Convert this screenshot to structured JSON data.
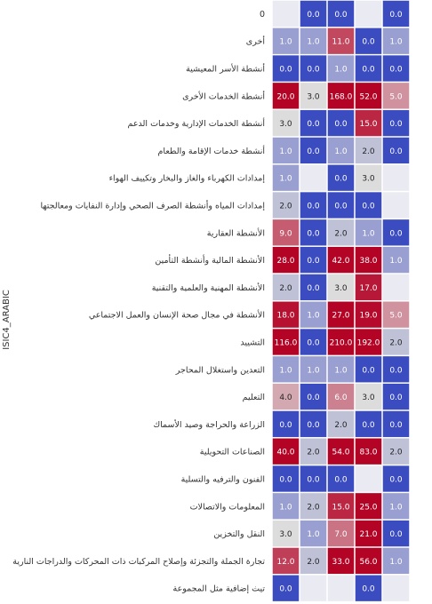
{
  "chart_data": {
    "type": "heatmap",
    "ylabel": "ISIC4_ARABIC",
    "color_scale": {
      "empty": "#eaeaf2",
      "low": "#3b4cc0",
      "mid": "#dddcdc",
      "high": "#b40426",
      "cap": 20
    },
    "rows": [
      {
        "label": "0",
        "values": [
          null,
          0.0,
          0.0,
          null,
          0.0
        ]
      },
      {
        "label": "أخرى",
        "values": [
          1.0,
          1.0,
          11.0,
          0.0,
          1.0
        ]
      },
      {
        "label": "أنشطة الأسر المعيشية",
        "values": [
          0.0,
          0.0,
          1.0,
          0.0,
          0.0
        ]
      },
      {
        "label": "أنشطة الخدمات الأخرى",
        "values": [
          20.0,
          3.0,
          168.0,
          52.0,
          5.0
        ]
      },
      {
        "label": "أنشطة الخدمات الإدارية وخدمات الدعم",
        "values": [
          3.0,
          0.0,
          0.0,
          15.0,
          0.0
        ]
      },
      {
        "label": "أنشطة خدمات الإقامة والطعام",
        "values": [
          1.0,
          0.0,
          1.0,
          2.0,
          0.0
        ]
      },
      {
        "label": "إمدادات الكهرباء والغاز والبخار وتكييف الهواء",
        "values": [
          1.0,
          null,
          0.0,
          3.0,
          null
        ]
      },
      {
        "label": "إمدادات المياه وأنشطة الصرف الصحي وإدارة النفايات ومعالجتها",
        "values": [
          2.0,
          0.0,
          0.0,
          0.0,
          null
        ]
      },
      {
        "label": "الأنشطة العقارية",
        "values": [
          9.0,
          0.0,
          2.0,
          1.0,
          0.0
        ]
      },
      {
        "label": "الأنشطة المالية وأنشطة التأمين",
        "values": [
          28.0,
          0.0,
          42.0,
          38.0,
          1.0
        ]
      },
      {
        "label": "الأنشطة المهنية والعلمية والتقنية",
        "values": [
          2.0,
          0.0,
          3.0,
          17.0,
          null
        ]
      },
      {
        "label": "الأنشطة في مجال صحة الإنسان والعمل الاجتماعي",
        "values": [
          18.0,
          1.0,
          27.0,
          19.0,
          5.0
        ]
      },
      {
        "label": "التشييد",
        "values": [
          116.0,
          0.0,
          210.0,
          192.0,
          2.0
        ]
      },
      {
        "label": "التعدين واستغلال المحاجر",
        "values": [
          1.0,
          1.0,
          1.0,
          0.0,
          0.0
        ]
      },
      {
        "label": "التعليم",
        "values": [
          4.0,
          0.0,
          6.0,
          3.0,
          0.0
        ]
      },
      {
        "label": "الزراعة والحراجة وصيد الأسماك",
        "values": [
          0.0,
          0.0,
          2.0,
          0.0,
          0.0
        ]
      },
      {
        "label": "الصناعات التحويلية",
        "values": [
          40.0,
          2.0,
          54.0,
          83.0,
          2.0
        ]
      },
      {
        "label": "الفنون والترفيه والتسلية",
        "values": [
          0.0,
          0.0,
          0.0,
          null,
          0.0
        ]
      },
      {
        "label": "المعلومات والاتصالات",
        "values": [
          1.0,
          2.0,
          15.0,
          25.0,
          1.0
        ]
      },
      {
        "label": "النقل والتخزين",
        "values": [
          3.0,
          1.0,
          7.0,
          21.0,
          0.0
        ]
      },
      {
        "label": "تجارة الجملة والتجزئة وإصلاح المركبات ذات المحركات والدراجات النارية",
        "values": [
          12.0,
          2.0,
          33.0,
          56.0,
          1.0
        ]
      },
      {
        "label": "تيث إضافية مثل المجموعة",
        "values": [
          0.0,
          null,
          null,
          0.0,
          null
        ]
      }
    ]
  }
}
